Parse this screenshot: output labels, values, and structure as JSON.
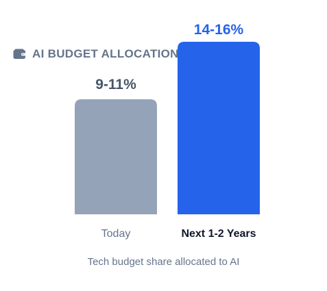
{
  "header": {
    "title": "AI BUDGET ALLOCATION",
    "icon": "wallet-icon"
  },
  "chart_data": {
    "type": "bar",
    "categories": [
      "Today",
      "Next 1-2 Years"
    ],
    "series": [
      {
        "values": [
          10,
          15
        ],
        "data_labels": [
          "9-11%",
          "14-16%"
        ],
        "colors": [
          "#94a3b8",
          "#2563eb"
        ],
        "track_colors": [
          "#e2e8f0",
          "#dbeafe"
        ]
      }
    ],
    "ylim": [
      0,
      25
    ],
    "grid": false,
    "xlabel": "",
    "ylabel": ""
  },
  "caption": "Tech budget share allocated to AI",
  "colors": {
    "title": "#64748b",
    "label_today": "#475569",
    "label_future": "#2563eb",
    "category_today": "#64748b",
    "category_future": "#0f172a",
    "caption": "#64748b"
  }
}
